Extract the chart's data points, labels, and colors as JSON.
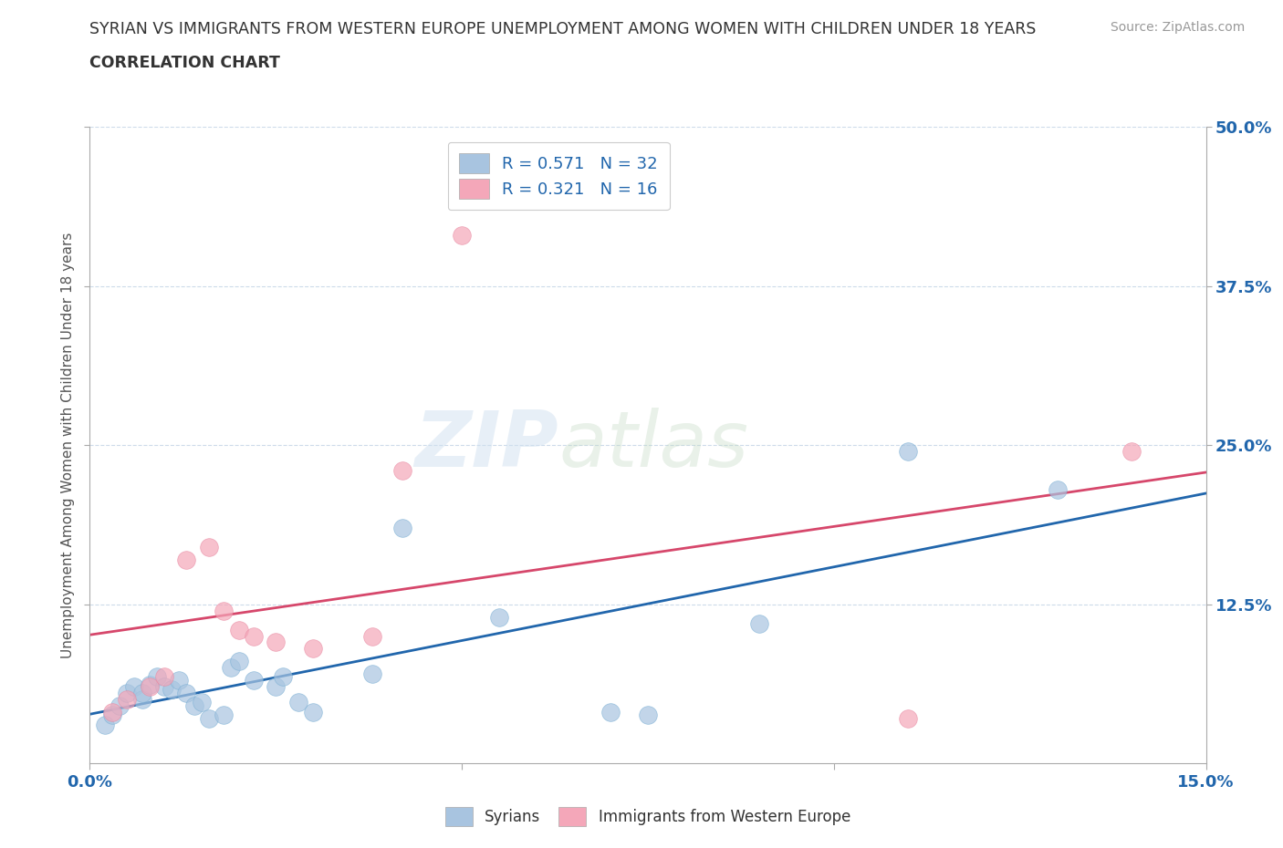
{
  "title_line1": "SYRIAN VS IMMIGRANTS FROM WESTERN EUROPE UNEMPLOYMENT AMONG WOMEN WITH CHILDREN UNDER 18 YEARS",
  "title_line2": "CORRELATION CHART",
  "source_text": "Source: ZipAtlas.com",
  "ylabel": "Unemployment Among Women with Children Under 18 years",
  "xlim": [
    0.0,
    0.15
  ],
  "ylim": [
    0.0,
    0.5
  ],
  "yticks": [
    0.125,
    0.25,
    0.375,
    0.5
  ],
  "ytick_labels": [
    "12.5%",
    "25.0%",
    "37.5%",
    "50.0%"
  ],
  "xticks": [
    0.0,
    0.05,
    0.1,
    0.15
  ],
  "xtick_labels": [
    "0.0%",
    "",
    "",
    "15.0%"
  ],
  "background_color": "#ffffff",
  "watermark_zip": "ZIP",
  "watermark_atlas": "atlas",
  "syrians_color": "#a8c4e0",
  "syrians_edge_color": "#7aafd4",
  "syrians_line_color": "#2166ac",
  "immigrants_color": "#f4a7b9",
  "immigrants_edge_color": "#e888a0",
  "immigrants_line_color": "#d6476b",
  "syrians_R": 0.571,
  "syrians_N": 32,
  "immigrants_R": 0.321,
  "immigrants_N": 16,
  "legend_label_syrians": "Syrians",
  "legend_label_immigrants": "Immigrants from Western Europe",
  "syrians_x": [
    0.002,
    0.003,
    0.004,
    0.005,
    0.006,
    0.007,
    0.007,
    0.008,
    0.009,
    0.01,
    0.011,
    0.012,
    0.013,
    0.014,
    0.015,
    0.016,
    0.018,
    0.019,
    0.02,
    0.022,
    0.025,
    0.026,
    0.028,
    0.03,
    0.038,
    0.042,
    0.055,
    0.07,
    0.075,
    0.09,
    0.11,
    0.13
  ],
  "syrians_y": [
    0.03,
    0.038,
    0.045,
    0.055,
    0.06,
    0.05,
    0.055,
    0.062,
    0.068,
    0.06,
    0.058,
    0.065,
    0.055,
    0.045,
    0.048,
    0.035,
    0.038,
    0.075,
    0.08,
    0.065,
    0.06,
    0.068,
    0.048,
    0.04,
    0.07,
    0.185,
    0.115,
    0.04,
    0.038,
    0.11,
    0.245,
    0.215
  ],
  "immigrants_x": [
    0.003,
    0.005,
    0.008,
    0.01,
    0.013,
    0.016,
    0.018,
    0.02,
    0.022,
    0.025,
    0.03,
    0.038,
    0.042,
    0.05,
    0.11,
    0.14
  ],
  "immigrants_y": [
    0.04,
    0.05,
    0.06,
    0.068,
    0.16,
    0.17,
    0.12,
    0.105,
    0.1,
    0.095,
    0.09,
    0.1,
    0.23,
    0.415,
    0.035,
    0.245
  ],
  "grid_color": "#c8d8e8",
  "title_color": "#333333",
  "axis_label_color": "#555555",
  "tick_color": "#2166ac",
  "legend_R_color": "#2166ac"
}
